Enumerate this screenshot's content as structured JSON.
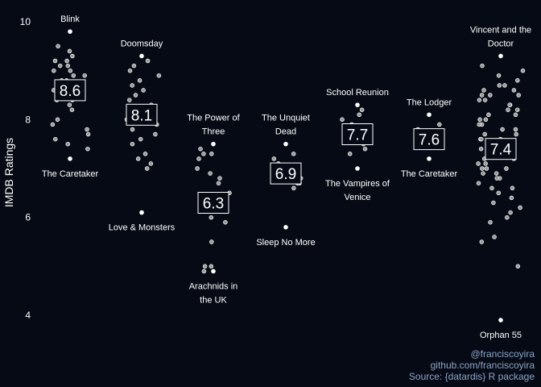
{
  "chart_data": {
    "type": "scatter",
    "title": "",
    "xlabel": "",
    "ylabel": "IMDB Ratings",
    "ylim": [
      3.6,
      10.2
    ],
    "yticks": [
      4,
      6,
      8,
      10
    ],
    "grid": false,
    "colors": {
      "background": "#050a14",
      "point_fill": "#9a9a9a",
      "point_stroke": "#ffffff",
      "highlight": "#ffffff",
      "text": "#ffffff",
      "credit": "#8aa6c8"
    },
    "groups": [
      {
        "mean_label": "8.6",
        "top_label": [
          "Blink"
        ],
        "bottom_label": [
          "The Caretaker"
        ],
        "max": 9.8,
        "min": 7.2,
        "points": [
          9.4,
          9.3,
          9.2,
          9.1,
          9.1,
          9.0,
          9.0,
          8.9,
          8.9,
          8.8,
          8.8,
          8.7,
          8.7,
          8.6,
          8.6,
          8.5,
          8.5,
          8.4,
          8.4,
          8.3,
          8.0,
          7.9,
          7.8,
          7.7,
          7.6,
          7.5,
          7.4,
          9.5,
          9.2,
          8.2
        ]
      },
      {
        "mean_label": "8.1",
        "top_label": [
          "Doomsday"
        ],
        "bottom_label": [
          "Love & Monsters"
        ],
        "max": 9.3,
        "min": 6.1,
        "points": [
          9.2,
          9.1,
          9.0,
          8.9,
          8.8,
          8.7,
          8.6,
          8.5,
          8.4,
          8.3,
          8.2,
          8.1,
          8.0,
          7.9,
          7.8,
          7.7,
          7.6,
          7.5,
          7.3,
          7.2,
          7.1,
          7.0
        ]
      },
      {
        "mean_label": "6.3",
        "top_label": [
          "The Power of",
          "Three"
        ],
        "bottom_label": [
          "Arachnids in",
          "the UK"
        ],
        "max": 7.5,
        "min": 4.9,
        "points": [
          7.4,
          7.3,
          7.3,
          7.2,
          7.0,
          6.9,
          6.8,
          6.7,
          6.5,
          6.4,
          6.3,
          6.2,
          6.0,
          5.9,
          5.5,
          5.0,
          5.0,
          4.9
        ]
      },
      {
        "mean_label": "6.9",
        "top_label": [
          "The Unquiet",
          "Dead"
        ],
        "bottom_label": [
          "Sleep No More"
        ],
        "max": 7.5,
        "min": 5.8,
        "points": [
          7.3,
          7.2,
          7.1,
          7.0,
          6.9,
          6.8,
          6.7,
          6.7,
          6.6
        ]
      },
      {
        "mean_label": "7.7",
        "top_label": [
          "School Reunion"
        ],
        "bottom_label": [
          "The Vampires of",
          "Venice"
        ],
        "max": 8.3,
        "min": 7.0,
        "points": [
          8.2,
          8.1,
          8.0,
          7.9,
          7.8,
          7.7,
          7.6,
          7.5,
          7.4,
          7.3
        ]
      },
      {
        "mean_label": "7.6",
        "top_label": [
          "The Lodger"
        ],
        "bottom_label": [
          "The Caretaker"
        ],
        "max": 8.1,
        "min": 7.2,
        "points": [
          7.9,
          7.8,
          7.7,
          7.6,
          7.5
        ]
      },
      {
        "mean_label": "7.4",
        "top_label": [
          "Vincent and the",
          "Doctor"
        ],
        "bottom_label": [
          "Orphan 55"
        ],
        "max": 9.3,
        "min": 3.9,
        "points": [
          9.1,
          9.0,
          8.9,
          8.8,
          8.7,
          8.7,
          8.6,
          8.6,
          8.5,
          8.5,
          8.4,
          8.4,
          8.3,
          8.3,
          8.2,
          8.2,
          8.1,
          8.1,
          8.0,
          8.0,
          7.9,
          7.9,
          7.8,
          7.8,
          7.7,
          7.7,
          7.6,
          7.6,
          7.5,
          7.5,
          7.4,
          7.4,
          7.3,
          7.3,
          7.2,
          7.2,
          7.1,
          7.1,
          7.0,
          7.0,
          6.9,
          6.9,
          6.8,
          6.8,
          6.7,
          6.6,
          6.5,
          6.4,
          6.3,
          6.2,
          6.1,
          6.0,
          5.9,
          5.6,
          5.5,
          5.0,
          8.5,
          7.6,
          7.0,
          6.6
        ]
      }
    ]
  },
  "credits": {
    "line1": "@franciscoyira",
    "line2": "github.com/franciscoyira",
    "line3": "Source: {datardis} R package"
  }
}
